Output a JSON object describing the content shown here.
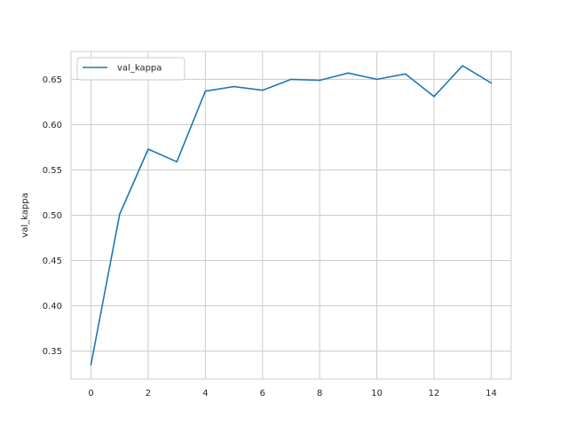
{
  "chart_data": {
    "type": "line",
    "xlabel": "",
    "ylabel": "val_kappa",
    "xlim": [
      -0.7,
      14.7
    ],
    "ylim": [
      0.3192,
      0.6808
    ],
    "xticks": [
      0,
      2,
      4,
      6,
      8,
      10,
      12,
      14
    ],
    "yticks": [
      0.35,
      0.4,
      0.45,
      0.5,
      0.55,
      0.6,
      0.65
    ],
    "grid": true,
    "legend_position": "upper-left",
    "series": [
      {
        "name": "val_kappa",
        "color": "#1f77b4",
        "x": [
          0,
          1,
          2,
          3,
          4,
          5,
          6,
          7,
          8,
          9,
          10,
          11,
          12,
          13,
          14
        ],
        "values": [
          0.335,
          0.501,
          0.573,
          0.559,
          0.637,
          0.642,
          0.638,
          0.65,
          0.649,
          0.657,
          0.65,
          0.656,
          0.631,
          0.665,
          0.646
        ]
      }
    ]
  }
}
